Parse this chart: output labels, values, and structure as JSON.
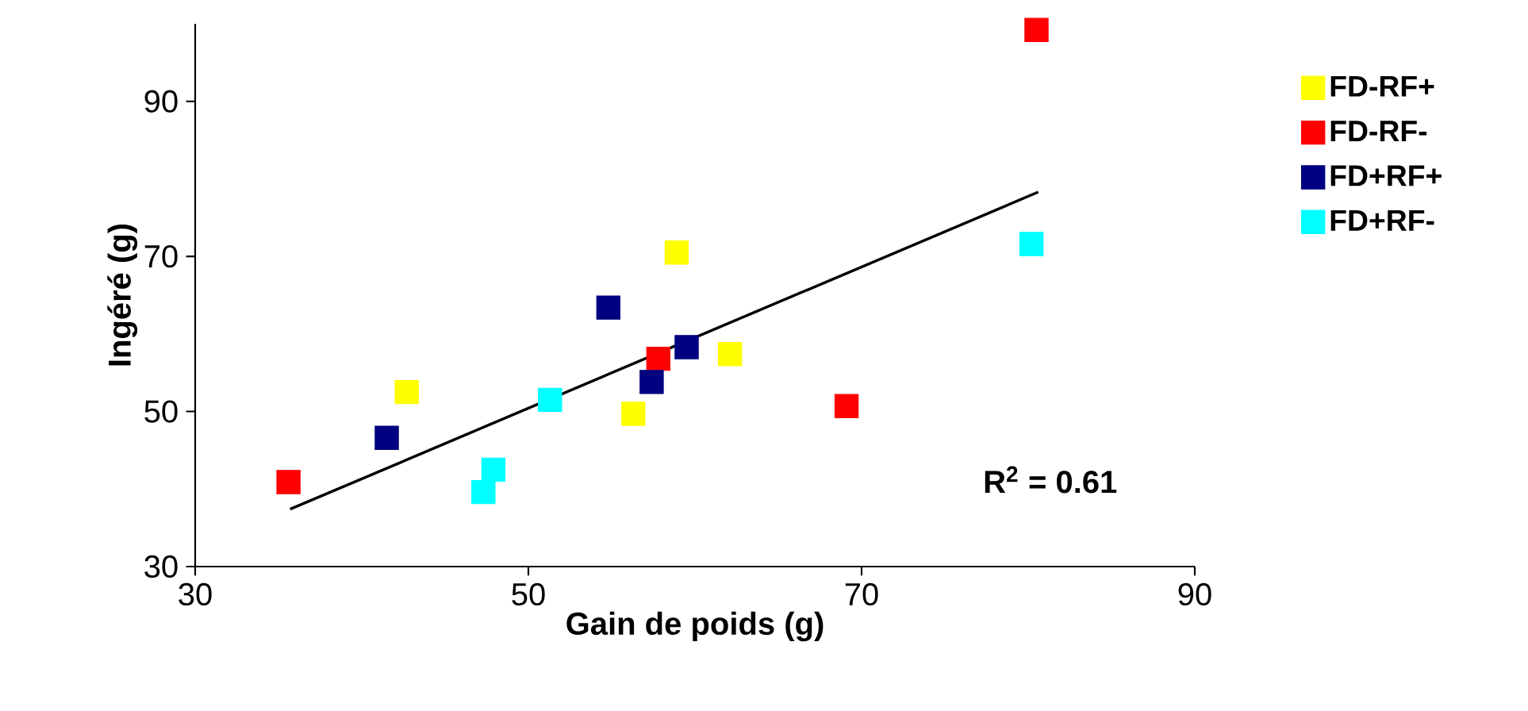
{
  "chart_data": {
    "type": "scatter",
    "xlabel": "Gain de poids (g)",
    "ylabel": "Ingéré (g)",
    "xlim": [
      30,
      90
    ],
    "ylim": [
      30,
      100
    ],
    "xticks": [
      30,
      50,
      70,
      90
    ],
    "yticks": [
      30,
      50,
      70,
      90
    ],
    "marker": "square",
    "grid": false,
    "legend": "right",
    "annotations": [
      "R$^{2}$ = 0.61"
    ],
    "series": [
      {
        "name": "FD-RF+",
        "color": "#ffff00",
        "x": [
          42.7,
          56.3,
          58.9,
          62.1
        ],
        "values": [
          52.5,
          49.7,
          70.5,
          57.4
        ]
      },
      {
        "name": "FD-RF-",
        "color": "#ff0000",
        "x": [
          35.6,
          57.8,
          69.1,
          80.5
        ],
        "values": [
          40.9,
          56.8,
          50.7,
          99.2
        ]
      },
      {
        "name": "FD+RF+",
        "color": "#000080",
        "x": [
          41.5,
          54.8,
          57.4,
          59.5
        ],
        "values": [
          46.6,
          63.4,
          53.8,
          58.3
        ]
      },
      {
        "name": "FD+RF-",
        "color": "#00ffff",
        "x": [
          47.3,
          47.9,
          51.3,
          80.2
        ],
        "values": [
          39.6,
          42.5,
          51.5,
          71.6
        ]
      },
      {
        "type": "line",
        "marker": "none",
        "color": "#000000",
        "x": [
          35.7,
          80.6
        ],
        "values": [
          37.4,
          78.3
        ]
      }
    ]
  }
}
